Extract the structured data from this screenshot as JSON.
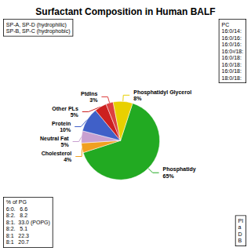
{
  "chart_data": {
    "type": "pie",
    "title": "Surfactant Composition in Human BALF",
    "categories": [
      "Phosphatidy",
      "Cholesterol",
      "Neutral Fat",
      "Protein",
      "Other PLs",
      "Ptdlns",
      "Phosphatidyl Glycerol"
    ],
    "values": [
      65,
      4,
      5,
      10,
      5,
      3,
      8
    ],
    "value_labels": [
      "65%",
      "4%",
      "5%",
      "10%",
      "5%",
      "3%",
      "8%"
    ],
    "colors": [
      "#22aa22",
      "#f0a020",
      "#c8a0d0",
      "#4060c8",
      "#cc2020",
      "#dd4040",
      "#e8d000"
    ],
    "data_labels": true,
    "annotations": [
      "SP-A, SP-D (hydrophilic)\nSP-B, SP-C (hydrophobic)",
      "PC\n16:0/14:\n16:0/16:\n16:0/16:\n16:0²/18:\n16:0/18:\n16:0/18:\n16:0/18:\n18:0/18:",
      "PI\na\nD\nB",
      "% of PG\n6:0.   6.6\n8:2.   8.2\n8:1.  33.0 (POPG)\n8:2.   5.1\n8:1   22.3\n8:1   20.7"
    ]
  }
}
